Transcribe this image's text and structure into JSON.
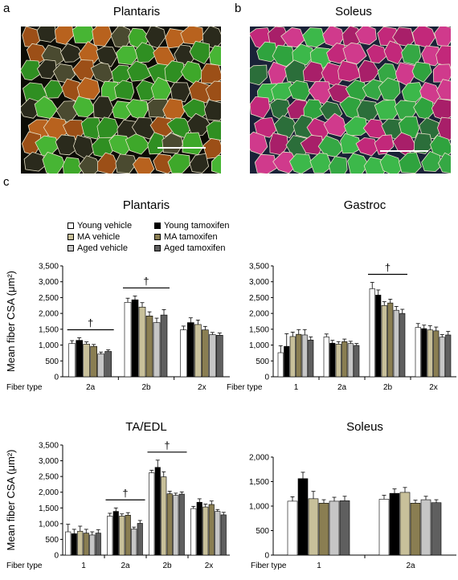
{
  "panels": {
    "a": "a",
    "b": "b",
    "c": "c"
  },
  "images": [
    {
      "label": "a",
      "title": "Plantaris"
    },
    {
      "label": "b",
      "title": "Soleus"
    }
  ],
  "colors": {
    "young_vehicle": "#ffffff",
    "young_tamoxifen": "#000000",
    "ma_vehicle": "#c8c09a",
    "ma_tamoxifen": "#8a7e52",
    "aged_vehicle": "#c6c6c6",
    "aged_tamoxifen": "#5f5f5f"
  },
  "legend": [
    {
      "name": "Young vehicle",
      "color_key": "young_vehicle"
    },
    {
      "name": "Young tamoxifen",
      "color_key": "young_tamoxifen"
    },
    {
      "name": "MA vehicle",
      "color_key": "ma_vehicle"
    },
    {
      "name": "MA tamoxifen",
      "color_key": "ma_tamoxifen"
    },
    {
      "name": "Aged vehicle",
      "color_key": "aged_vehicle"
    },
    {
      "name": "Aged tamoxifen",
      "color_key": "aged_tamoxifen"
    }
  ],
  "chart_data": [
    {
      "type": "bar",
      "title": "Plantaris",
      "ylabel": "Mean fiber CSA (μm²)",
      "xlabel_prefix": "Fiber type",
      "ylim": [
        0,
        3500
      ],
      "yticks": [
        "0",
        "500",
        "1,000",
        "1,500",
        "2,000",
        "2,500",
        "3,000",
        "3,500"
      ],
      "categories": [
        "2a",
        "2b",
        "2x"
      ],
      "series": [
        {
          "name": "Young vehicle",
          "values": [
            1050,
            2350,
            1480
          ],
          "errors": [
            90,
            130,
            120
          ]
        },
        {
          "name": "Young tamoxifen",
          "values": [
            1150,
            2430,
            1710
          ],
          "errors": [
            80,
            120,
            150
          ]
        },
        {
          "name": "MA vehicle",
          "values": [
            1030,
            2200,
            1650
          ],
          "errors": [
            70,
            140,
            140
          ]
        },
        {
          "name": "MA tamoxifen",
          "values": [
            960,
            1920,
            1480
          ],
          "errors": [
            60,
            130,
            110
          ]
        },
        {
          "name": "Aged vehicle",
          "values": [
            720,
            1710,
            1330
          ],
          "errors": [
            60,
            140,
            70
          ]
        },
        {
          "name": "Aged tamoxifen",
          "values": [
            800,
            1950,
            1310
          ],
          "errors": [
            50,
            170,
            70
          ]
        }
      ],
      "annotations": [
        {
          "text": "†",
          "span": [
            0,
            0
          ]
        },
        {
          "text": "†",
          "span": [
            1,
            1
          ]
        }
      ]
    },
    {
      "type": "bar",
      "title": "Gastroc",
      "xlabel_prefix": "Fiber type",
      "ylim": [
        0,
        3500
      ],
      "yticks": [
        "0",
        "500",
        "1,000",
        "1,500",
        "2,000",
        "2,500",
        "3,000",
        "3,500"
      ],
      "categories": [
        "1",
        "2a",
        "2b",
        "2x"
      ],
      "series": [
        {
          "name": "Young vehicle",
          "values": [
            760,
            1260,
            2780,
            1560
          ],
          "errors": [
            220,
            90,
            200,
            120
          ]
        },
        {
          "name": "Young tamoxifen",
          "values": [
            960,
            1060,
            2580,
            1520
          ],
          "errors": [
            400,
            90,
            160,
            110
          ]
        },
        {
          "name": "MA vehicle",
          "values": [
            1270,
            1030,
            2250,
            1480
          ],
          "errors": [
            140,
            80,
            120,
            130
          ]
        },
        {
          "name": "MA tamoxifen",
          "values": [
            1340,
            1110,
            2330,
            1450
          ],
          "errors": [
            150,
            80,
            120,
            120
          ]
        },
        {
          "name": "Aged vehicle",
          "values": [
            1320,
            1050,
            2100,
            1250
          ],
          "errors": [
            170,
            70,
            120,
            80
          ]
        },
        {
          "name": "Aged tamoxifen",
          "values": [
            1160,
            990,
            2000,
            1320
          ],
          "errors": [
            100,
            60,
            130,
            110
          ]
        }
      ],
      "annotations": [
        {
          "text": "†",
          "span": [
            2,
            2
          ]
        }
      ]
    },
    {
      "type": "bar",
      "title": "TA/EDL",
      "ylabel": "Mean fiber CSA (μm²)",
      "xlabel_prefix": "Fiber type",
      "ylim": [
        0,
        3500
      ],
      "yticks": [
        "0",
        "500",
        "1,000",
        "1,500",
        "2,000",
        "2,500",
        "3,000",
        "3,500"
      ],
      "categories": [
        "1",
        "2a",
        "2b",
        "2x"
      ],
      "series": [
        {
          "name": "Young vehicle",
          "values": [
            740,
            1240,
            2620,
            1480
          ],
          "errors": [
            240,
            90,
            80,
            70
          ]
        },
        {
          "name": "Young tamoxifen",
          "values": [
            680,
            1390,
            2790,
            1680
          ],
          "errors": [
            140,
            110,
            230,
            110
          ]
        },
        {
          "name": "MA vehicle",
          "values": [
            760,
            1240,
            2490,
            1530
          ],
          "errors": [
            160,
            70,
            160,
            90
          ]
        },
        {
          "name": "MA tamoxifen",
          "values": [
            700,
            1270,
            1950,
            1610
          ],
          "errors": [
            120,
            80,
            80,
            110
          ]
        },
        {
          "name": "Aged vehicle",
          "values": [
            640,
            830,
            1900,
            1390
          ],
          "errors": [
            100,
            60,
            70,
            60
          ]
        },
        {
          "name": "Aged tamoxifen",
          "values": [
            700,
            1010,
            1940,
            1280
          ],
          "errors": [
            110,
            90,
            70,
            80
          ]
        }
      ],
      "annotations": [
        {
          "text": "†",
          "span": [
            1,
            1
          ]
        },
        {
          "text": "†",
          "span": [
            2,
            2
          ]
        }
      ]
    },
    {
      "type": "bar",
      "title": "Soleus",
      "xlabel_prefix": "Fiber type",
      "ylim": [
        0,
        2000
      ],
      "yticks": [
        "0",
        "500",
        "1,000",
        "1,500",
        "2,000"
      ],
      "categories": [
        "1",
        "2a"
      ],
      "series": [
        {
          "name": "Young vehicle",
          "values": [
            1100,
            1140
          ],
          "errors": [
            90,
            80
          ]
        },
        {
          "name": "Young tamoxifen",
          "values": [
            1560,
            1260
          ],
          "errors": [
            130,
            90
          ]
        },
        {
          "name": "MA vehicle",
          "values": [
            1150,
            1280
          ],
          "errors": [
            150,
            100
          ]
        },
        {
          "name": "MA tamoxifen",
          "values": [
            1060,
            1060
          ],
          "errors": [
            70,
            60
          ]
        },
        {
          "name": "Aged vehicle",
          "values": [
            1100,
            1130
          ],
          "errors": [
            80,
            70
          ]
        },
        {
          "name": "Aged tamoxifen",
          "values": [
            1110,
            1070
          ],
          "errors": [
            90,
            60
          ]
        }
      ],
      "annotations": []
    }
  ]
}
